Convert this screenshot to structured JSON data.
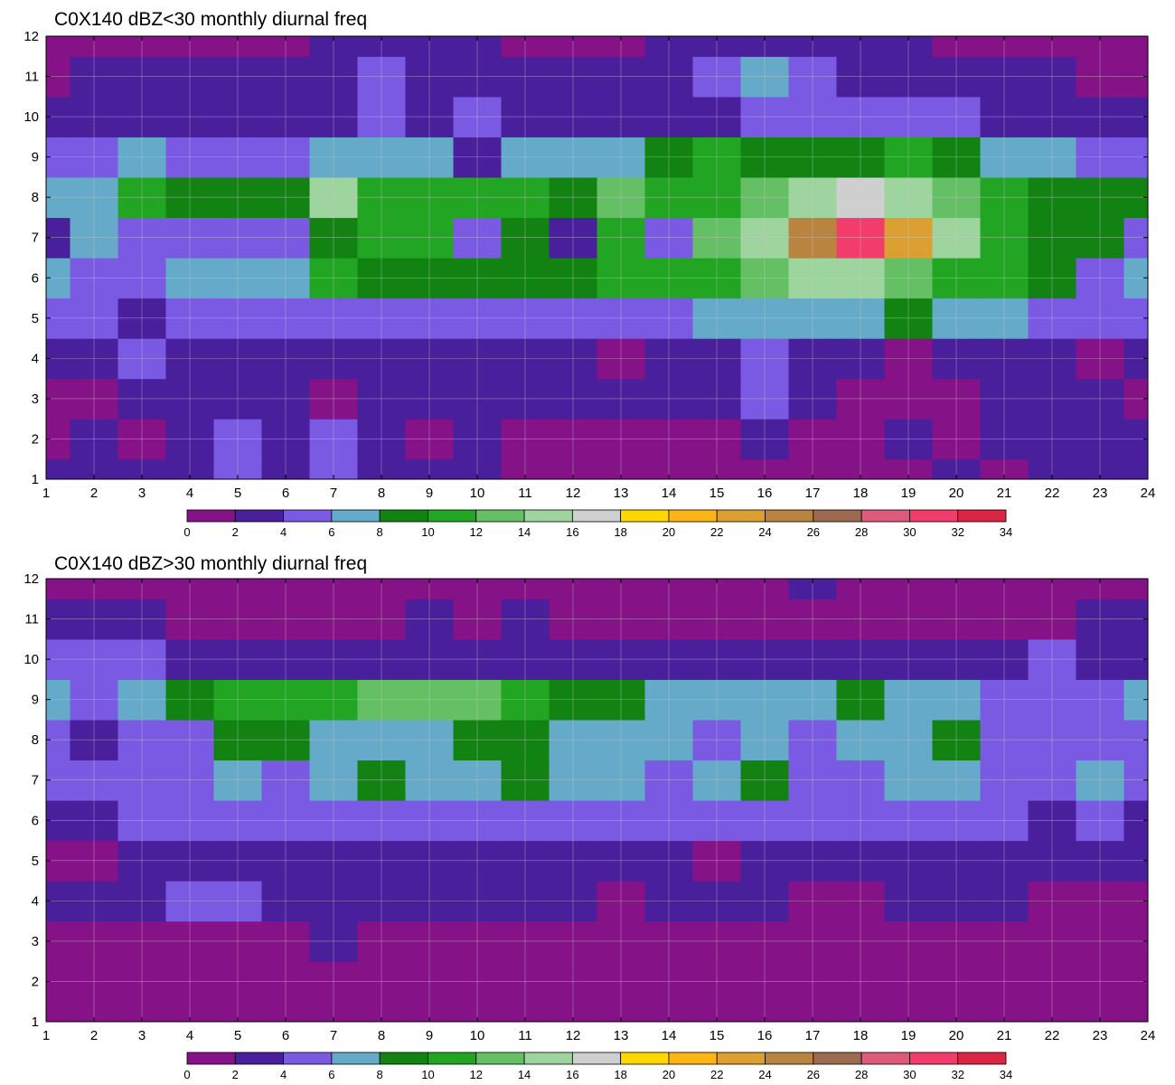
{
  "palette": {
    "bins": [
      0,
      2,
      4,
      6,
      8,
      10,
      12,
      14,
      16,
      18,
      20,
      22,
      24,
      26,
      28,
      30,
      32,
      34
    ],
    "colors": [
      "#861287",
      "#4a1f9c",
      "#7a5ae3",
      "#66aac9",
      "#128312",
      "#22a522",
      "#65c065",
      "#9ed49e",
      "#cfcfcf",
      "#ffd800",
      "#fdb515",
      "#dba031",
      "#b98340",
      "#9b6a50",
      "#de5a7a",
      "#f23c6c",
      "#dc2545"
    ],
    "contour_line": "#e2b437",
    "grid": "#c8c8c8"
  },
  "chart_data": [
    {
      "type": "heatmap",
      "title": "C0X140 dBZ<30 monthly diurnal freq",
      "xlabel": "",
      "ylabel": "",
      "x": [
        1,
        2,
        3,
        4,
        5,
        6,
        7,
        8,
        9,
        10,
        11,
        12,
        13,
        14,
        15,
        16,
        17,
        18,
        19,
        20,
        21,
        22,
        23,
        24
      ],
      "y": [
        1,
        2,
        3,
        4,
        5,
        6,
        7,
        8,
        9,
        10,
        11,
        12
      ],
      "xlim": [
        1,
        24
      ],
      "ylim": [
        1,
        12
      ],
      "xticks": [
        "1",
        "2",
        "3",
        "4",
        "5",
        "6",
        "7",
        "8",
        "9",
        "10",
        "11",
        "12",
        "13",
        "14",
        "15",
        "16",
        "17",
        "18",
        "19",
        "20",
        "21",
        "22",
        "23",
        "24"
      ],
      "yticks": [
        "1",
        "2",
        "3",
        "4",
        "5",
        "6",
        "7",
        "8",
        "9",
        "10",
        "11",
        "12"
      ],
      "colorbar_ticks": [
        "0",
        "2",
        "4",
        "6",
        "8",
        "10",
        "12",
        "14",
        "16",
        "18",
        "20",
        "22",
        "24",
        "26",
        "28",
        "30",
        "32",
        "34"
      ],
      "grid": true,
      "values": [
        [
          3,
          3,
          3,
          3,
          5,
          3,
          4,
          3,
          3,
          3,
          1,
          1,
          1,
          1,
          1,
          1,
          1,
          1,
          1,
          3,
          1,
          3,
          3,
          3
        ],
        [
          1,
          3,
          1,
          3,
          5,
          3,
          5,
          3,
          1,
          3,
          1,
          1,
          1,
          1,
          1,
          3,
          1,
          1,
          3,
          1,
          3,
          3,
          3,
          3
        ],
        [
          1,
          1,
          3,
          3,
          3,
          3,
          1,
          3,
          3,
          3,
          3,
          3,
          3,
          3,
          3,
          5,
          3,
          1,
          1,
          1,
          3,
          3,
          3,
          1
        ],
        [
          3,
          3,
          5,
          3,
          3,
          3,
          3,
          3,
          3,
          3,
          3,
          3,
          1,
          3,
          3,
          5,
          3,
          3,
          1,
          3,
          3,
          3,
          1,
          3
        ],
        [
          5,
          5,
          3,
          5,
          5,
          5,
          5,
          5,
          5,
          5,
          5,
          5,
          5,
          5,
          7,
          7,
          7,
          7,
          9,
          7,
          7,
          5,
          5,
          5
        ],
        [
          7,
          5,
          5,
          7,
          7,
          7,
          11,
          9,
          9,
          9,
          9,
          9,
          11,
          11,
          11,
          13,
          15,
          15,
          13,
          11,
          11,
          9,
          5,
          7
        ],
        [
          3,
          7,
          5,
          5,
          5,
          5,
          9,
          11,
          11,
          5,
          9,
          3,
          11,
          5,
          13,
          15,
          25,
          31,
          23,
          15,
          11,
          9,
          9,
          5
        ],
        [
          7,
          7,
          11,
          9,
          9,
          9,
          15,
          11,
          11,
          11,
          11,
          9,
          13,
          11,
          11,
          13,
          15,
          17,
          15,
          13,
          11,
          9,
          9,
          9
        ],
        [
          5,
          5,
          7,
          5,
          5,
          5,
          7,
          7,
          7,
          3,
          7,
          7,
          7,
          9,
          11,
          9,
          9,
          9,
          11,
          9,
          7,
          7,
          5,
          5
        ],
        [
          3,
          3,
          3,
          3,
          3,
          3,
          3,
          5,
          3,
          5,
          3,
          3,
          3,
          3,
          3,
          5,
          5,
          5,
          5,
          5,
          3,
          3,
          3,
          3
        ],
        [
          1,
          3,
          3,
          3,
          3,
          3,
          3,
          5,
          3,
          3,
          3,
          3,
          3,
          3,
          5,
          7,
          5,
          3,
          3,
          3,
          3,
          3,
          1,
          1
        ],
        [
          1,
          1,
          1,
          1,
          1,
          1,
          3,
          3,
          3,
          3,
          1,
          1,
          1,
          3,
          3,
          3,
          3,
          3,
          3,
          1,
          1,
          1,
          1,
          1
        ]
      ]
    },
    {
      "type": "heatmap",
      "title": "C0X140 dBZ>30 monthly diurnal freq",
      "xlabel": "",
      "ylabel": "",
      "x": [
        1,
        2,
        3,
        4,
        5,
        6,
        7,
        8,
        9,
        10,
        11,
        12,
        13,
        14,
        15,
        16,
        17,
        18,
        19,
        20,
        21,
        22,
        23,
        24
      ],
      "y": [
        1,
        2,
        3,
        4,
        5,
        6,
        7,
        8,
        9,
        10,
        11,
        12
      ],
      "xlim": [
        1,
        24
      ],
      "ylim": [
        1,
        12
      ],
      "xticks": [
        "1",
        "2",
        "3",
        "4",
        "5",
        "6",
        "7",
        "8",
        "9",
        "10",
        "11",
        "12",
        "13",
        "14",
        "15",
        "16",
        "17",
        "18",
        "19",
        "20",
        "21",
        "22",
        "23",
        "24"
      ],
      "yticks": [
        "1",
        "2",
        "3",
        "4",
        "5",
        "6",
        "7",
        "8",
        "9",
        "10",
        "11",
        "12"
      ],
      "colorbar_ticks": [
        "0",
        "2",
        "4",
        "6",
        "8",
        "10",
        "12",
        "14",
        "16",
        "18",
        "20",
        "22",
        "24",
        "26",
        "28",
        "30",
        "32",
        "34"
      ],
      "grid": true,
      "values": [
        [
          1,
          1,
          1,
          1,
          1,
          1,
          1,
          1,
          1,
          1,
          1,
          1,
          1,
          1,
          1,
          1,
          1,
          1,
          1,
          1,
          1,
          1,
          1,
          1
        ],
        [
          1,
          1,
          1,
          1,
          1,
          1,
          1,
          1,
          1,
          1,
          1,
          1,
          1,
          1,
          1,
          1,
          1,
          1,
          1,
          1,
          1,
          1,
          1,
          1
        ],
        [
          1,
          1,
          1,
          1,
          1,
          1,
          3,
          1,
          1,
          1,
          1,
          1,
          1,
          1,
          1,
          1,
          1,
          1,
          1,
          1,
          1,
          1,
          1,
          1
        ],
        [
          3,
          3,
          3,
          5,
          5,
          3,
          3,
          3,
          3,
          3,
          3,
          3,
          1,
          3,
          3,
          3,
          1,
          1,
          3,
          3,
          3,
          1,
          1,
          1
        ],
        [
          1,
          1,
          3,
          3,
          3,
          3,
          3,
          3,
          3,
          3,
          3,
          3,
          3,
          3,
          1,
          3,
          3,
          3,
          3,
          3,
          3,
          3,
          3,
          3
        ],
        [
          3,
          3,
          5,
          5,
          5,
          5,
          5,
          5,
          5,
          5,
          5,
          5,
          5,
          5,
          5,
          5,
          5,
          5,
          5,
          5,
          5,
          3,
          5,
          3
        ],
        [
          5,
          5,
          5,
          5,
          7,
          5,
          7,
          9,
          7,
          7,
          9,
          7,
          7,
          5,
          7,
          9,
          5,
          5,
          7,
          7,
          5,
          5,
          7,
          5
        ],
        [
          5,
          3,
          5,
          5,
          9,
          9,
          7,
          7,
          7,
          9,
          9,
          7,
          7,
          7,
          5,
          7,
          5,
          7,
          7,
          9,
          5,
          5,
          5,
          5
        ],
        [
          7,
          5,
          7,
          9,
          11,
          11,
          11,
          13,
          13,
          13,
          11,
          9,
          9,
          7,
          7,
          7,
          7,
          9,
          7,
          7,
          5,
          5,
          5,
          7
        ],
        [
          5,
          5,
          5,
          3,
          3,
          3,
          3,
          3,
          3,
          3,
          3,
          3,
          3,
          3,
          3,
          3,
          3,
          3,
          3,
          3,
          3,
          5,
          3,
          3
        ],
        [
          3,
          3,
          3,
          1,
          1,
          1,
          1,
          1,
          3,
          1,
          3,
          1,
          1,
          1,
          1,
          1,
          1,
          1,
          1,
          1,
          1,
          1,
          3,
          3
        ],
        [
          1,
          1,
          1,
          1,
          1,
          1,
          1,
          1,
          1,
          1,
          1,
          1,
          1,
          1,
          1,
          1,
          3,
          1,
          1,
          1,
          1,
          1,
          1,
          1
        ]
      ]
    }
  ]
}
